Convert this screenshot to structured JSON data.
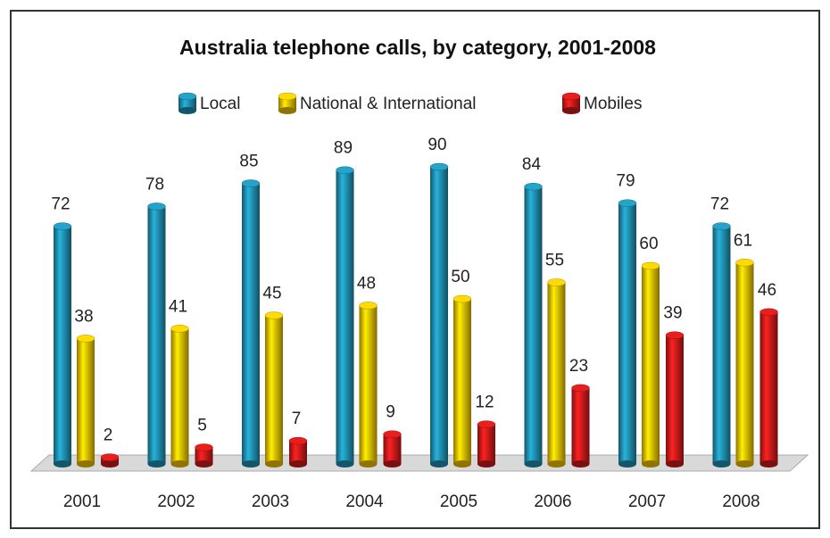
{
  "chart_data": {
    "type": "bar",
    "title": "Australia telephone calls, by category, 2001-2008",
    "categories": [
      "2001",
      "2002",
      "2003",
      "2004",
      "2005",
      "2006",
      "2007",
      "2008"
    ],
    "series": [
      {
        "name": "Local",
        "color": "#1f8fb0",
        "values": [
          72,
          78,
          85,
          89,
          90,
          84,
          79,
          72
        ]
      },
      {
        "name": "National & International",
        "color": "#f0bf00",
        "values": [
          38,
          41,
          45,
          48,
          50,
          55,
          60,
          61
        ]
      },
      {
        "name": "Mobiles",
        "color": "#cc1a1a",
        "values": [
          2,
          5,
          7,
          9,
          12,
          23,
          39,
          46
        ]
      }
    ]
  }
}
